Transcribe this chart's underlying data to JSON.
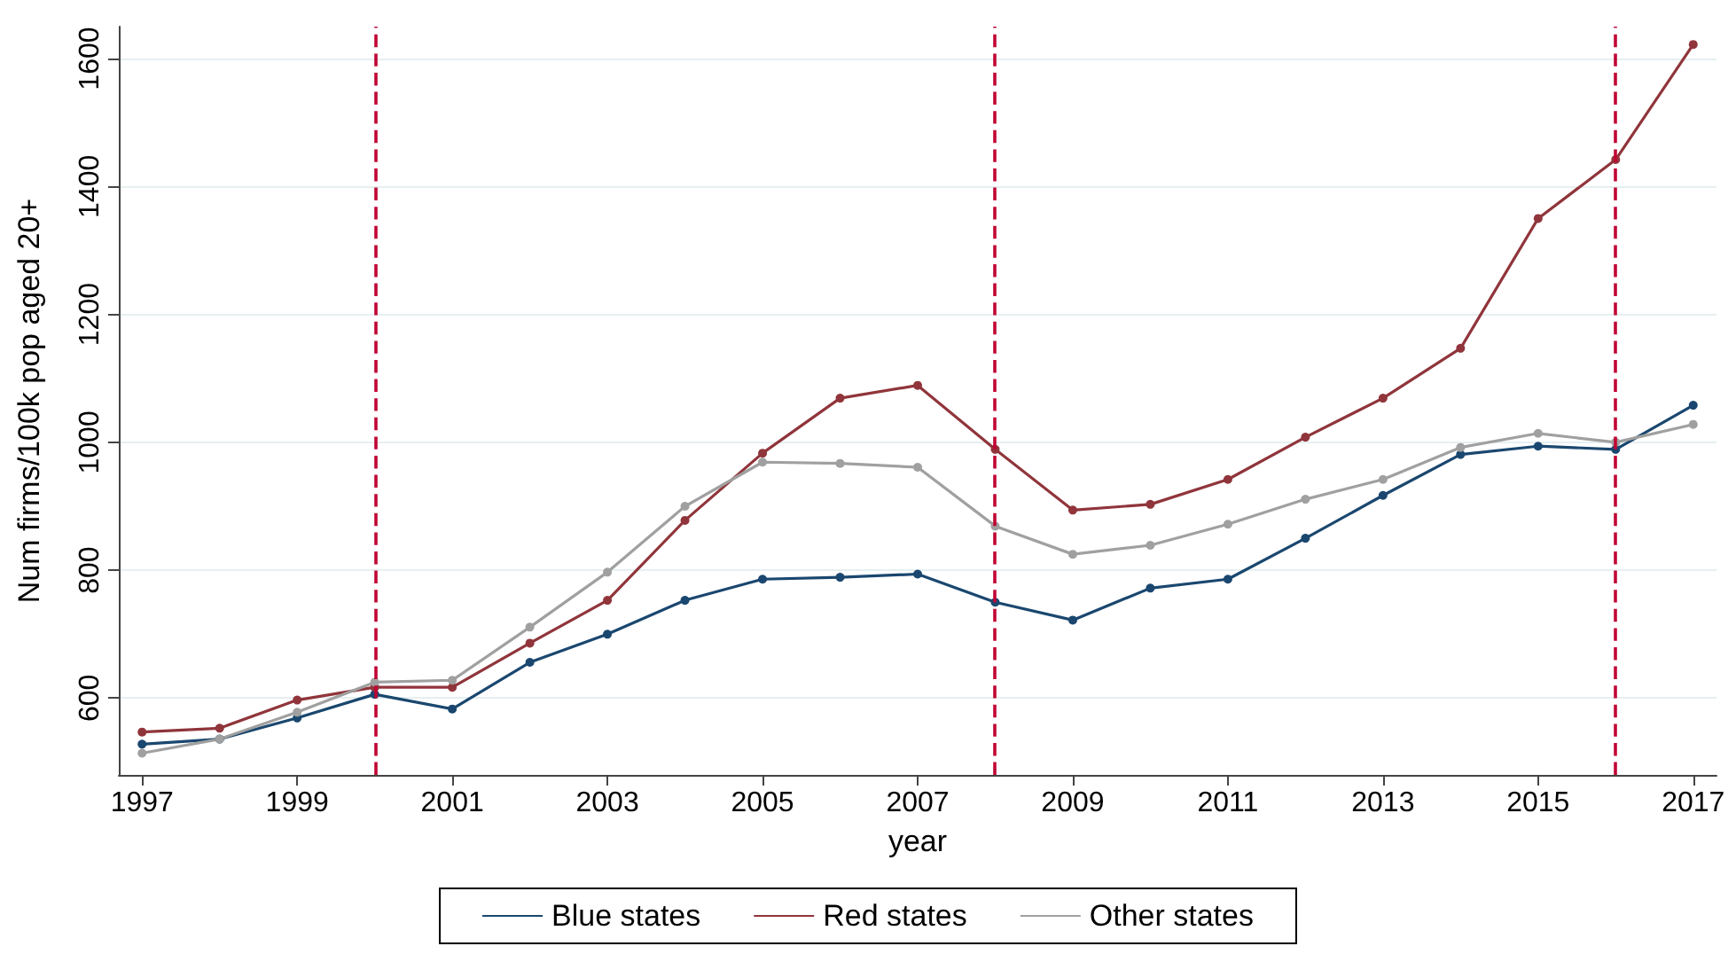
{
  "chart_data": {
    "type": "line",
    "xlabel": "year",
    "ylabel": "Num firms/100k pop aged 20+",
    "x": [
      1997,
      1998,
      1999,
      2000,
      2001,
      2002,
      2003,
      2004,
      2005,
      2006,
      2007,
      2008,
      2009,
      2010,
      2011,
      2012,
      2013,
      2014,
      2015,
      2016,
      2017
    ],
    "series": [
      {
        "name": "Blue states",
        "color": "#1a476f",
        "values": [
          528,
          536,
          569,
          606,
          583,
          656,
          700,
          753,
          786,
          789,
          794,
          750,
          722,
          772,
          786,
          850,
          917,
          981,
          994,
          989,
          1058
        ]
      },
      {
        "name": "Red states",
        "color": "#90353b",
        "values": [
          547,
          553,
          597,
          617,
          617,
          686,
          753,
          878,
          983,
          1069,
          1089,
          989,
          894,
          903,
          942,
          1008,
          1069,
          1147,
          1350,
          1442,
          1622
        ]
      },
      {
        "name": "Other states",
        "color": "#a0a0a0",
        "values": [
          514,
          536,
          578,
          625,
          628,
          711,
          797,
          900,
          969,
          967,
          961,
          869,
          825,
          839,
          872,
          911,
          942,
          992,
          1014,
          1000,
          1028
        ]
      }
    ],
    "xlim": [
      1996.7,
      2017.3
    ],
    "xticks": [
      1997,
      1999,
      2001,
      2003,
      2005,
      2007,
      2009,
      2011,
      2013,
      2015,
      2017
    ],
    "ylim": [
      480,
      1650
    ],
    "yticks": [
      600,
      800,
      1000,
      1200,
      1400,
      1600
    ],
    "ref_lines": [
      {
        "axis": "x",
        "value": 2000,
        "color": "#c10534",
        "line_style": "dashed"
      },
      {
        "axis": "x",
        "value": 2008,
        "color": "#c10534",
        "line_style": "dashed"
      },
      {
        "axis": "x",
        "value": 2016,
        "color": "#c10534",
        "line_style": "dashed"
      }
    ],
    "grid": "y",
    "legend": "bottom",
    "marker": "circle",
    "line_style": "solid"
  }
}
